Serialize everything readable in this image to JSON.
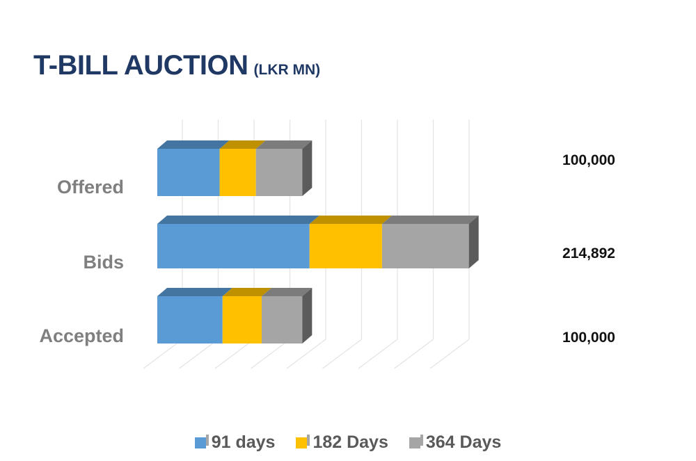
{
  "title": "T-BILL AUCTION",
  "unit": "(LKR MN)",
  "chart_data": {
    "type": "bar",
    "orientation": "horizontal",
    "stacked": true,
    "style_3d": true,
    "categories": [
      "Offered",
      "Bids",
      "Accepted"
    ],
    "series": [
      {
        "name": "91 days",
        "color": "#5b9bd5",
        "values": [
          43000,
          105000,
          45000
        ]
      },
      {
        "name": "182 Days",
        "color": "#ffc000",
        "values": [
          25000,
          50000,
          27000
        ]
      },
      {
        "name": "364 Days",
        "color": "#a5a5a5",
        "values": [
          32000,
          59892,
          28000
        ]
      }
    ],
    "totals": [
      "100,000",
      "214,892",
      "100,000"
    ],
    "xlim": [
      0,
      240000
    ],
    "grid": true,
    "legend": "bottom"
  }
}
